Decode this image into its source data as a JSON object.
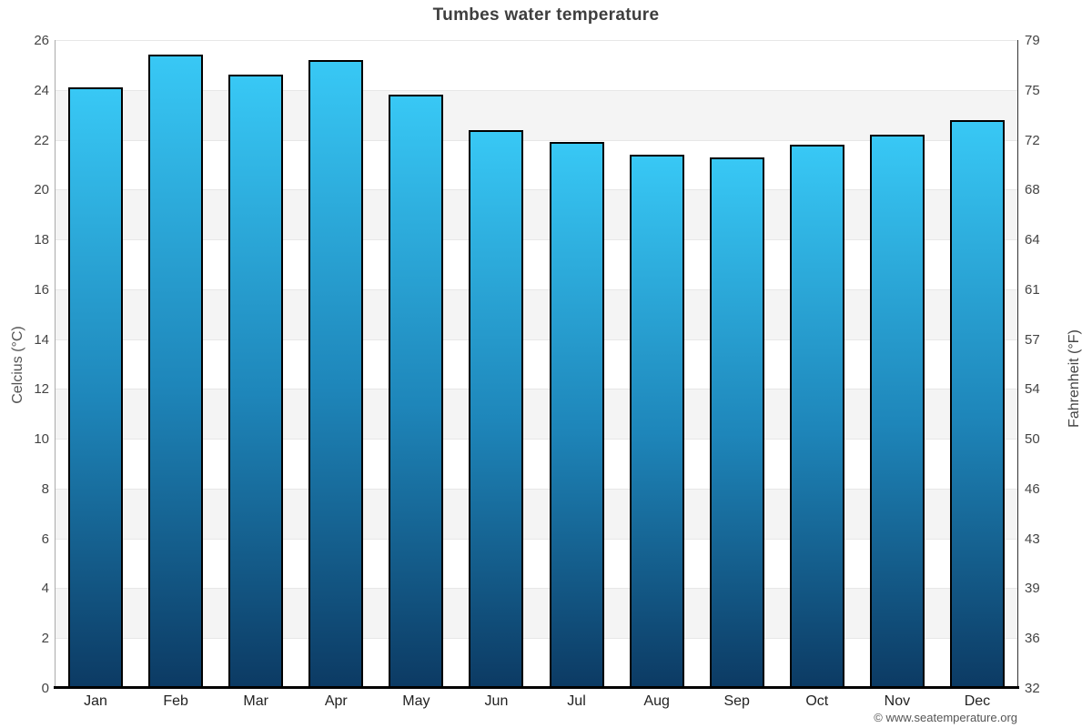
{
  "title": "Tumbes water temperature",
  "copyright": "© www.seatemperature.org",
  "chart_data": {
    "type": "bar",
    "title": "Tumbes water temperature",
    "categories": [
      "Jan",
      "Feb",
      "Mar",
      "Apr",
      "May",
      "Jun",
      "Jul",
      "Aug",
      "Sep",
      "Oct",
      "Nov",
      "Dec"
    ],
    "values": [
      24.1,
      25.4,
      24.6,
      25.2,
      23.8,
      22.4,
      21.9,
      21.4,
      21.3,
      21.8,
      22.2,
      22.8
    ],
    "ylabel_left": "Celcius (°C)",
    "ylabel_right": "Fahrenheit (°F)",
    "ylim": [
      0,
      26
    ],
    "grid": true,
    "alternate_bands": true,
    "legend": "none",
    "yticks": [
      {
        "celsius": "26",
        "fahrenheit": "79"
      },
      {
        "celsius": "24",
        "fahrenheit": "75"
      },
      {
        "celsius": "22",
        "fahrenheit": "72"
      },
      {
        "celsius": "20",
        "fahrenheit": "68"
      },
      {
        "celsius": "18",
        "fahrenheit": "64"
      },
      {
        "celsius": "16",
        "fahrenheit": "61"
      },
      {
        "celsius": "14",
        "fahrenheit": "57"
      },
      {
        "celsius": "12",
        "fahrenheit": "54"
      },
      {
        "celsius": "10",
        "fahrenheit": "50"
      },
      {
        "celsius": "8",
        "fahrenheit": "46"
      },
      {
        "celsius": "6",
        "fahrenheit": "43"
      },
      {
        "celsius": "4",
        "fahrenheit": "39"
      },
      {
        "celsius": "2",
        "fahrenheit": "36"
      },
      {
        "celsius": "0",
        "fahrenheit": "32"
      }
    ],
    "colors": {
      "bar_gradient_top": "#38c8f5",
      "bar_gradient_mid": "#1e86ba",
      "bar_gradient_bottom": "#0c3a63",
      "bar_border": "#000000",
      "band_gray": "#f4f4f4",
      "gridline": "#e7e7e7",
      "title_text": "#3e3e3e",
      "tick_text": "#444444"
    }
  }
}
